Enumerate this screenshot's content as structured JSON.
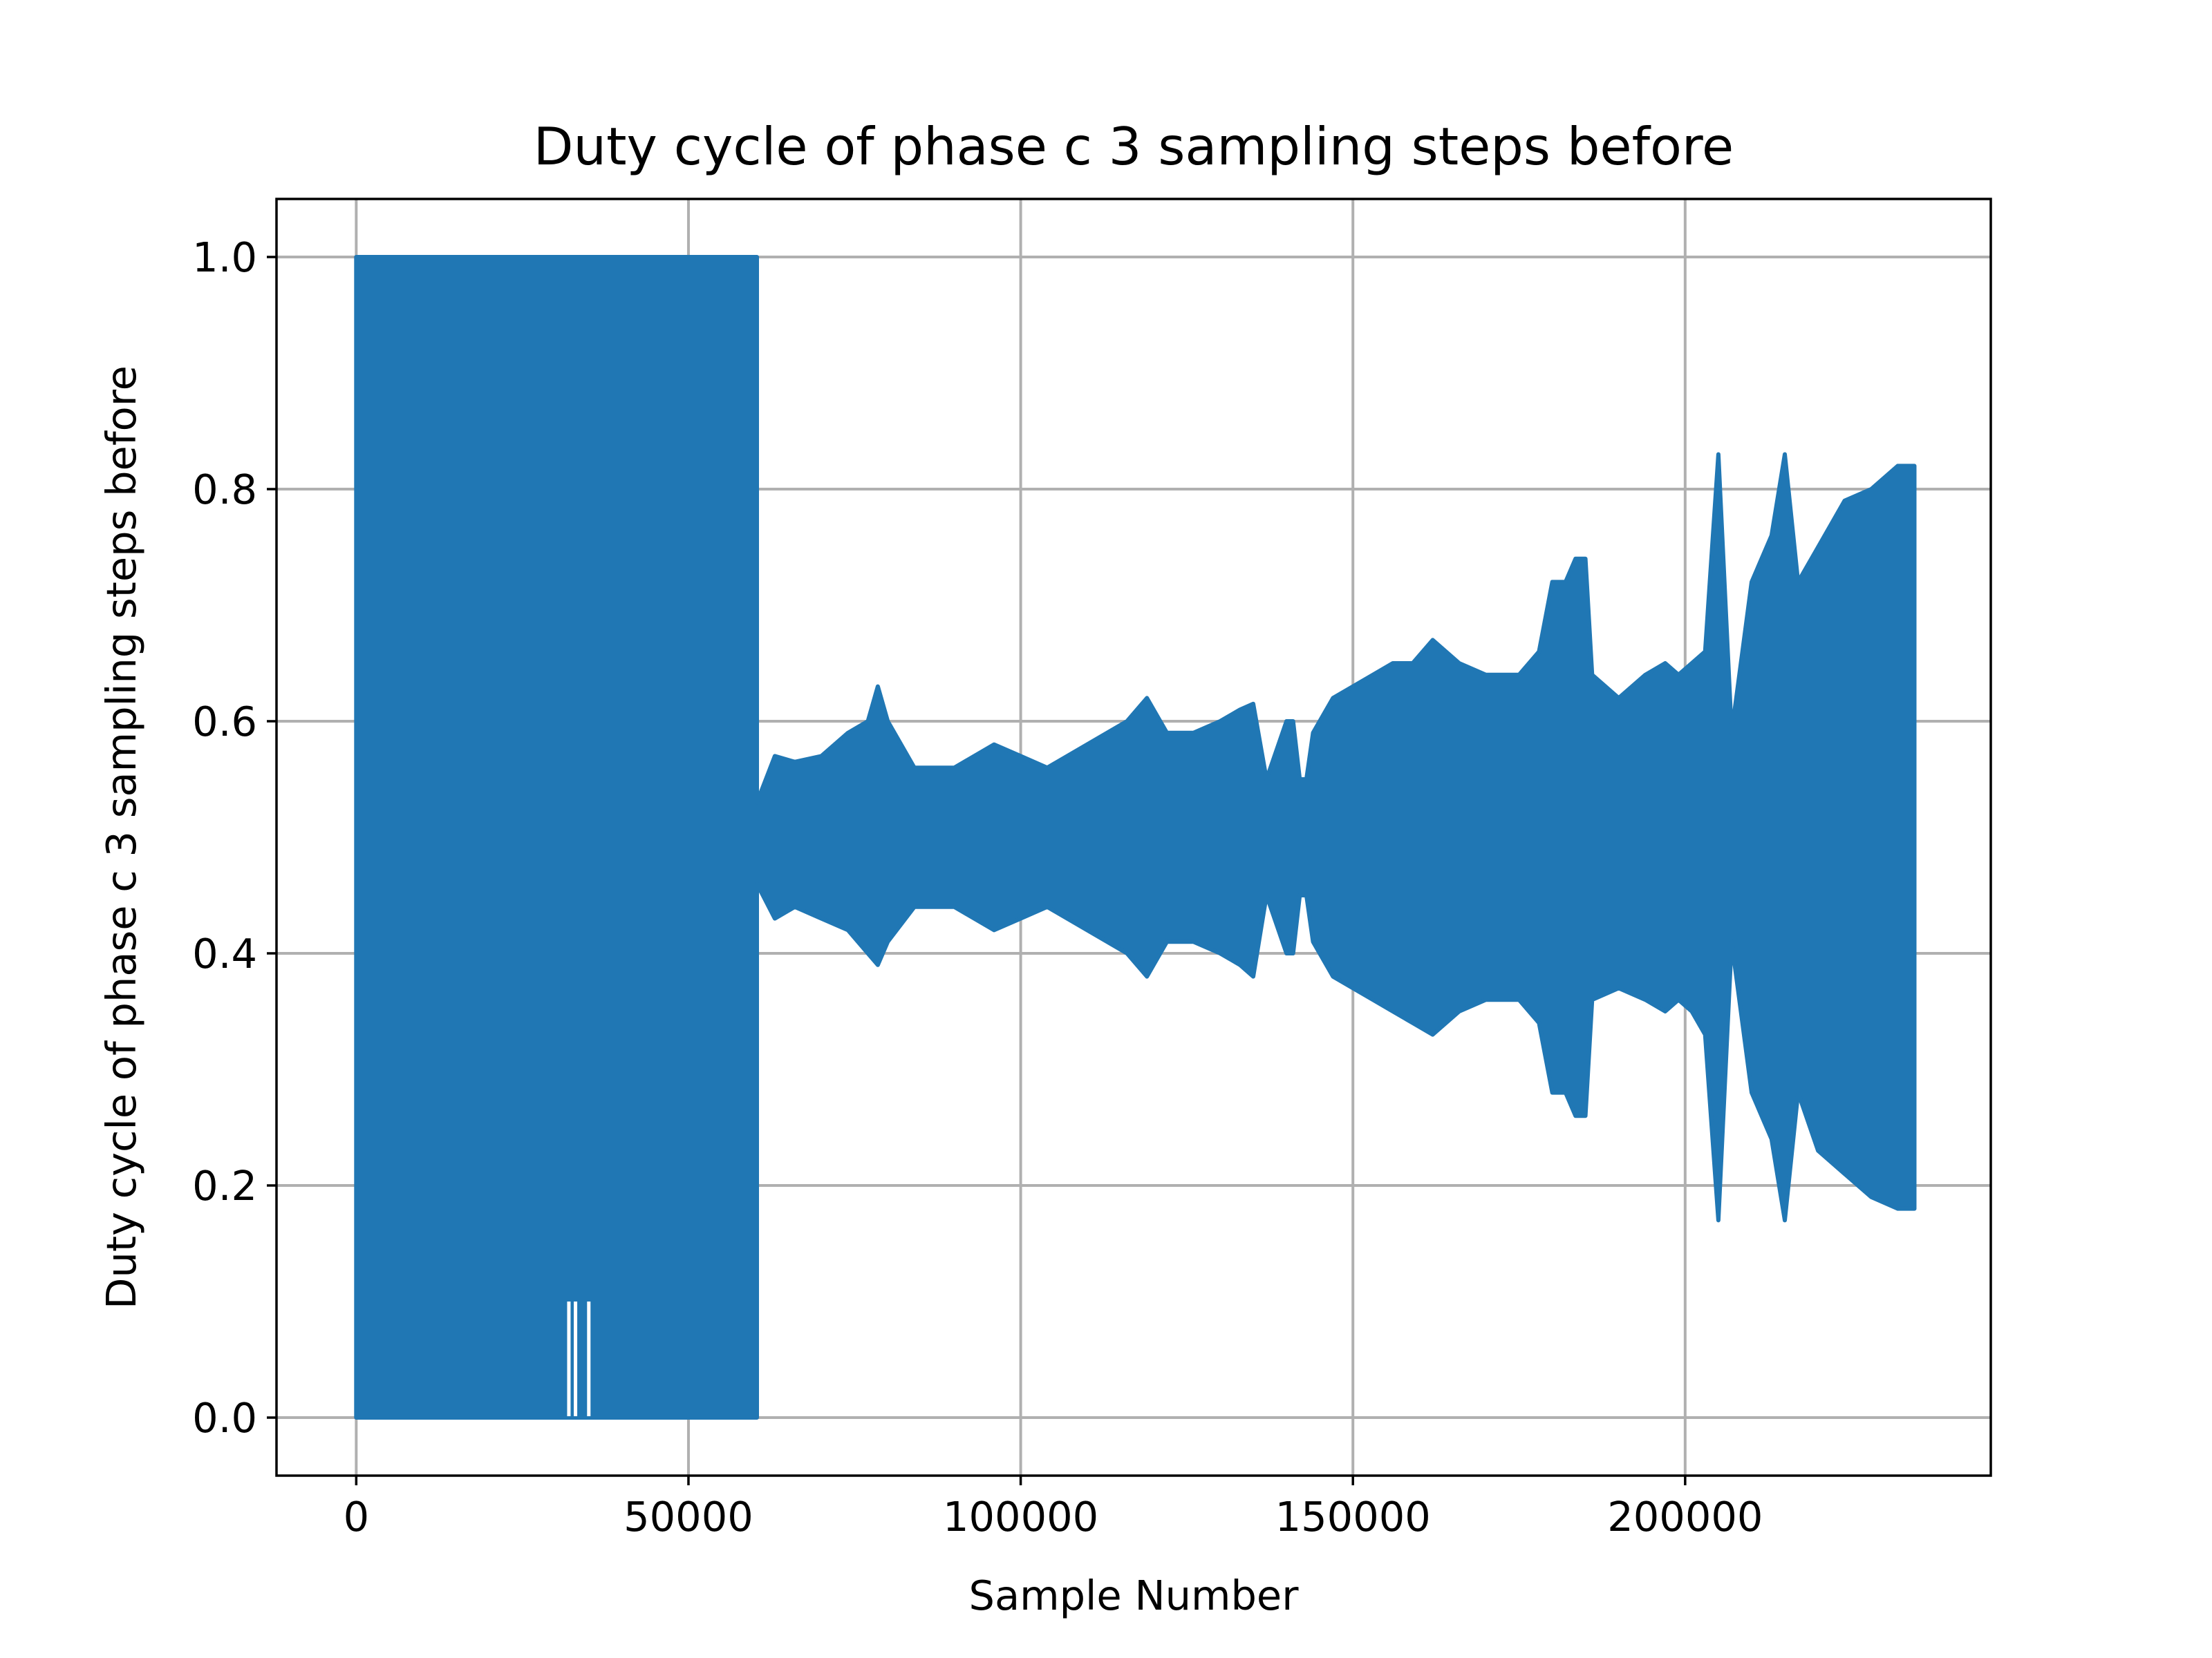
{
  "chart_data": {
    "type": "area",
    "title": "Duty cycle of phase c 3 sampling steps before",
    "xlabel": "Sample Number",
    "ylabel": "Duty cycle of phase c 3 sampling steps before",
    "xlim": [
      -12000,
      246000
    ],
    "ylim": [
      -0.05,
      1.05
    ],
    "xticks": [
      0,
      50000,
      100000,
      150000,
      200000
    ],
    "xtick_labels": [
      "0",
      "50000",
      "100000",
      "150000",
      "200000"
    ],
    "yticks": [
      0.0,
      0.2,
      0.4,
      0.6,
      0.8,
      1.0
    ],
    "ytick_labels": [
      "0.0",
      "0.2",
      "0.4",
      "0.6",
      "0.8",
      "1.0"
    ],
    "grid": true,
    "color": "#2077b4",
    "series": [
      {
        "name": "duty_cycle_c_envelope",
        "x": [
          0,
          60300,
          60300,
          63000,
          66000,
          70000,
          74000,
          77000,
          78500,
          80000,
          84000,
          90000,
          96000,
          100000,
          104000,
          110000,
          116000,
          119000,
          122000,
          126000,
          130000,
          133000,
          135000,
          137000,
          140000,
          141000,
          142000,
          143000,
          144000,
          147000,
          150000,
          153000,
          156000,
          159000,
          162000,
          166000,
          170000,
          175000,
          178000,
          180000,
          182000,
          183500,
          185000,
          186000,
          190000,
          194000,
          197000,
          199000,
          201000,
          203000,
          205000,
          207000,
          210000,
          213000,
          215000,
          217000,
          220000,
          224000,
          228000,
          232000,
          234500
        ],
        "upper": [
          1.0,
          1.0,
          0.53,
          0.57,
          0.565,
          0.57,
          0.59,
          0.6,
          0.63,
          0.6,
          0.56,
          0.56,
          0.58,
          0.57,
          0.56,
          0.58,
          0.6,
          0.62,
          0.59,
          0.59,
          0.6,
          0.61,
          0.615,
          0.55,
          0.6,
          0.6,
          0.55,
          0.55,
          0.59,
          0.62,
          0.63,
          0.64,
          0.65,
          0.65,
          0.67,
          0.65,
          0.64,
          0.64,
          0.66,
          0.72,
          0.72,
          0.74,
          0.74,
          0.64,
          0.62,
          0.64,
          0.65,
          0.64,
          0.65,
          0.66,
          0.83,
          0.59,
          0.72,
          0.76,
          0.83,
          0.72,
          0.75,
          0.79,
          0.8,
          0.82,
          0.82
        ],
        "lower": [
          0.0,
          0.0,
          0.46,
          0.43,
          0.44,
          0.43,
          0.42,
          0.4,
          0.39,
          0.41,
          0.44,
          0.44,
          0.42,
          0.43,
          0.44,
          0.42,
          0.4,
          0.38,
          0.41,
          0.41,
          0.4,
          0.39,
          0.38,
          0.45,
          0.4,
          0.4,
          0.45,
          0.45,
          0.41,
          0.38,
          0.37,
          0.36,
          0.35,
          0.34,
          0.33,
          0.35,
          0.36,
          0.36,
          0.34,
          0.28,
          0.28,
          0.26,
          0.26,
          0.36,
          0.37,
          0.36,
          0.35,
          0.36,
          0.35,
          0.33,
          0.17,
          0.41,
          0.28,
          0.24,
          0.17,
          0.28,
          0.23,
          0.21,
          0.19,
          0.18,
          0.18
        ]
      }
    ],
    "notches": [
      {
        "x": 32000,
        "from": 0.0,
        "to": 0.1
      },
      {
        "x": 33000,
        "from": 0.0,
        "to": 0.1
      },
      {
        "x": 35000,
        "from": 0.0,
        "to": 0.1
      }
    ]
  }
}
